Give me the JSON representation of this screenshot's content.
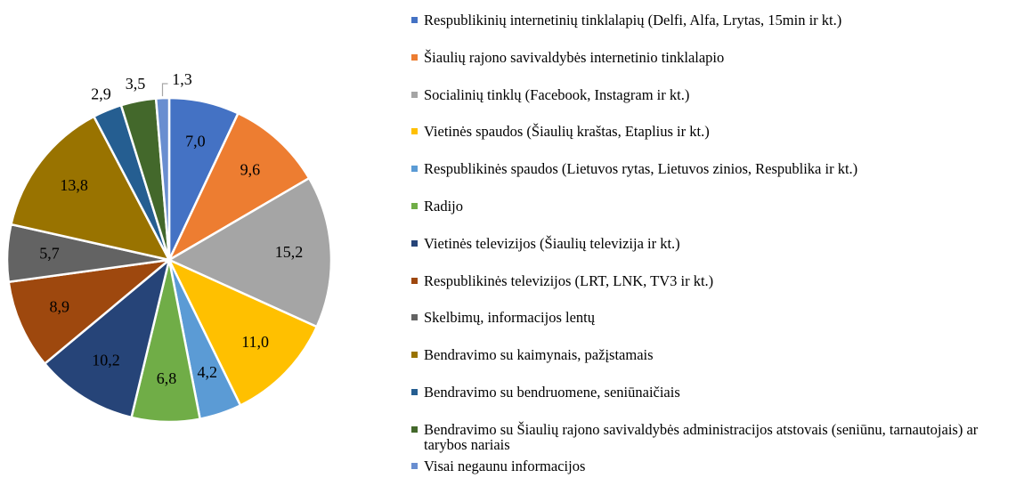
{
  "chart_data": {
    "type": "pie",
    "categories": [
      "Respublikinių internetinių tinklalapių (Delfi, Alfa, Lrytas, 15min ir kt.)",
      "Šiaulių rajono savivaldybės internetinio tinklalapio",
      "Socialinių tinklų (Facebook, Instagram ir kt.)",
      "Vietinės spaudos (Šiaulių kraštas, Etaplius ir kt.)",
      "Respublikinės spaudos (Lietuvos rytas, Lietuvos zinios, Respublika ir kt.)",
      "Radijo",
      "Vietinės televizijos (Šiaulių televizija ir kt.)",
      "Respublikinės televizijos (LRT, LNK, TV3 ir kt.)",
      "Skelbimų, informacijos lentų",
      "Bendravimo su kaimynais, pažįstamais",
      "Bendravimo su bendruomene, seniūnaičiais",
      "Bendravimo su Šiaulių rajono savivaldybės administracijos atstovais (seniūnu, tarnautojais) ar tarybos nariais",
      "Visai negaunu informacijos"
    ],
    "values": [
      7.0,
      9.6,
      15.2,
      11.0,
      4.2,
      6.8,
      10.2,
      8.9,
      5.7,
      13.8,
      2.9,
      3.5,
      1.3
    ],
    "value_labels": [
      "7,0",
      "9,6",
      "15,2",
      "11,0",
      "4,2",
      "6,8",
      "10,2",
      "8,9",
      "5,7",
      "13,8",
      "2,9",
      "3,5",
      "1,3"
    ],
    "colors": [
      "#4472c4",
      "#ed7d31",
      "#a5a5a5",
      "#ffc000",
      "#5b9bd5",
      "#70ad47",
      "#264478",
      "#9e480e",
      "#636363",
      "#997300",
      "#255e91",
      "#43682b",
      "#698ed0"
    ]
  }
}
